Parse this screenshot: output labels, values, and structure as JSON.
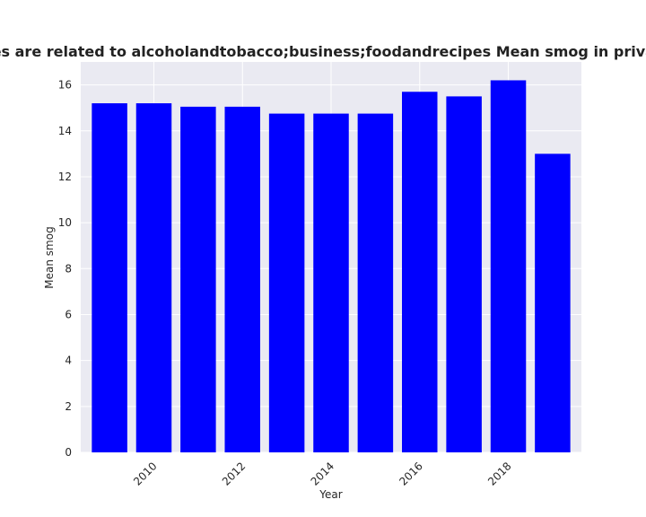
{
  "chart_data": {
    "type": "bar",
    "title": "Categories are related to alcoholandtobacco;business;foodandrecipes Mean smog in privacy policies",
    "xlabel": "Year",
    "ylabel": "Mean smog",
    "x": [
      2009,
      2010,
      2011,
      2012,
      2013,
      2014,
      2015,
      2016,
      2017,
      2018,
      2019
    ],
    "values": [
      15.2,
      15.2,
      15.05,
      15.05,
      14.75,
      14.75,
      14.75,
      15.7,
      15.5,
      16.2,
      13.0
    ],
    "xticks": [
      2010,
      2012,
      2014,
      2016,
      2018
    ],
    "yticks": [
      0,
      2,
      4,
      6,
      8,
      10,
      12,
      14,
      16
    ],
    "xlim": [
      2008.35,
      2019.65
    ],
    "ylim": [
      0,
      17.0
    ],
    "bar_color": "#0000ff",
    "plot_background": "#eaeaf2",
    "grid": true,
    "grid_color": "#ffffff"
  }
}
